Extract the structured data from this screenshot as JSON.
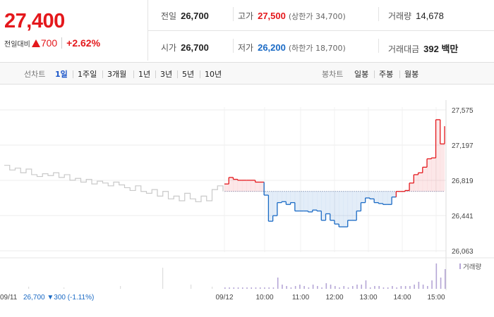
{
  "quote": {
    "price": "27,400",
    "change_label": "전일대비",
    "change_value": "700",
    "change_percent": "+2.62%"
  },
  "stats": {
    "prev": {
      "label": "전일",
      "value": "26,700"
    },
    "high": {
      "label": "고가",
      "value": "27,500",
      "sub": "(상한가 34,700)"
    },
    "volume": {
      "label": "거래량",
      "value": "14,678"
    },
    "open": {
      "label": "시가",
      "value": "26,700"
    },
    "low": {
      "label": "저가",
      "value": "26,200",
      "sub": "(하한가 18,700)"
    },
    "amount": {
      "label": "거래대금",
      "value": "392 백만"
    }
  },
  "period_bar": {
    "line_label": "선차트",
    "line_options": [
      "1일",
      "1주일",
      "3개월",
      "1년",
      "3년",
      "5년",
      "10년"
    ],
    "line_active": "1일",
    "candle_label": "봉차트",
    "candle_options": [
      "일봉",
      "주봉",
      "월봉"
    ]
  },
  "colors": {
    "up": "#e4181c",
    "down": "#1a6ac5",
    "prev_day_line": "#c9c9c9",
    "volume_bar": "#b5a6d6"
  },
  "chart_data": {
    "type": "line",
    "y_ticks": [
      "27,575",
      "27,197",
      "26,819",
      "26,441",
      "26,063"
    ],
    "ylim": [
      26063,
      27575
    ],
    "baseline": 26700,
    "x_labels": [
      "09/11",
      "09/12",
      "10:00",
      "11:00",
      "12:00",
      "13:00",
      "14:00",
      "15:00"
    ],
    "prev_day_note": {
      "date": "09/11",
      "price": "26,700",
      "change": "300",
      "pct": "(-1.11%)"
    },
    "volume_legend": "거래량",
    "series": [
      {
        "values_prev_day": [
          26980,
          26930,
          26950,
          26900,
          26940,
          26880,
          26860,
          26890,
          26870,
          26900,
          26850,
          26880,
          26820,
          26840,
          26800,
          26830,
          26780,
          26810,
          26790,
          26760,
          26800,
          26770,
          26740,
          26710,
          26760,
          26700,
          26680,
          26720,
          26650,
          26700,
          26620,
          26650,
          26600,
          26680,
          26620,
          26590,
          26650,
          26600,
          26720,
          26760,
          26700
        ]
      },
      {
        "values_today": [
          26780,
          26850,
          26830,
          26820,
          26820,
          26820,
          26820,
          26800,
          26800,
          26660,
          26380,
          26440,
          26580,
          26590,
          26560,
          26580,
          26490,
          26490,
          26490,
          26480,
          26500,
          26490,
          26390,
          26460,
          26390,
          26350,
          26320,
          26320,
          26390,
          26390,
          26490,
          26580,
          26630,
          26620,
          26580,
          26570,
          26560,
          26560,
          26640,
          26700,
          26700,
          26710,
          26790,
          26880,
          26900,
          26960,
          27050,
          27060,
          27470,
          27210,
          27400
        ]
      }
    ],
    "volume": [
      1,
      1,
      1,
      1,
      1,
      1,
      1,
      1,
      1,
      1,
      1,
      1,
      8,
      3,
      2,
      1,
      2,
      3,
      2,
      1,
      3,
      2,
      1,
      4,
      3,
      2,
      1,
      2,
      1,
      2,
      3,
      3,
      6,
      1,
      2,
      2,
      1,
      1,
      2,
      1,
      2,
      2,
      2,
      3,
      5,
      3,
      2,
      6,
      18,
      8,
      14
    ]
  }
}
